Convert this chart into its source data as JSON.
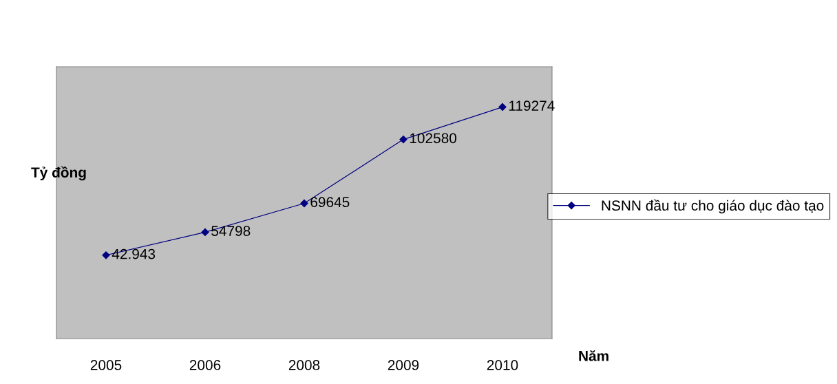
{
  "chart_data": {
    "type": "line",
    "xlabel": "Năm",
    "ylabel": "Tỷ đồng",
    "categories": [
      "2005",
      "2006",
      "2008",
      "2009",
      "2010"
    ],
    "series": [
      {
        "name": "NSNN đầu tư cho giáo dục đào tạo",
        "color": "#000080",
        "values": [
          42943,
          54798,
          69645,
          102580,
          119274
        ],
        "value_labels": [
          "42.943",
          "54798",
          "69645",
          "102580",
          "119274"
        ]
      }
    ],
    "ylim": [
      0,
      140000
    ],
    "tick_labels": "x",
    "grid": false,
    "legend": "right",
    "marker": "diamond",
    "line_style": "solid"
  }
}
